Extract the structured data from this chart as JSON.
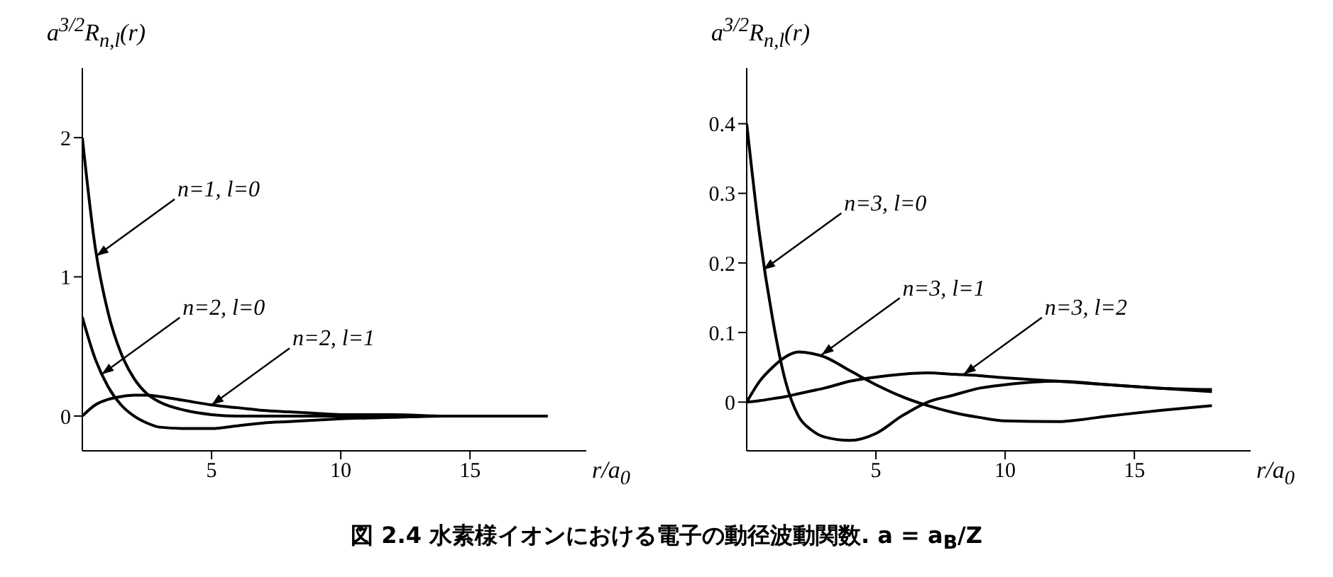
{
  "chart_data": [
    {
      "type": "line",
      "ylabel": "a$^{3/2}$R$_{n,l}$(r)",
      "xlabel": "r/a$_{0}$",
      "x": [
        0,
        0.5,
        1,
        1.5,
        2,
        2.5,
        3,
        4,
        5,
        6,
        7,
        8,
        9,
        10,
        12,
        14,
        16,
        18
      ],
      "xlim": [
        0,
        19.5
      ],
      "xticks": [
        5,
        10,
        15
      ],
      "ylim": [
        -0.25,
        2.5
      ],
      "yticks": [
        0,
        1,
        2
      ],
      "grid": false,
      "legend": false,
      "marker": "none",
      "line_style": "solid",
      "series": [
        {
          "color": "#000000",
          "values": [
            2,
            1.21,
            0.74,
            0.45,
            0.27,
            0.16,
            0.1,
            0.04,
            0.01,
            0,
            0,
            0,
            0,
            0,
            0,
            0,
            0,
            0
          ]
        },
        {
          "color": "#000000",
          "values": [
            0.71,
            0.41,
            0.21,
            0.08,
            0,
            -0.05,
            -0.08,
            -0.09,
            -0.09,
            -0.07,
            -0.05,
            -0.04,
            -0.03,
            -0.02,
            -0.01,
            0,
            0,
            0
          ]
        },
        {
          "color": "#000000",
          "values": [
            0,
            0.08,
            0.12,
            0.14,
            0.15,
            0.15,
            0.14,
            0.11,
            0.08,
            0.06,
            0.04,
            0.03,
            0.02,
            0.01,
            0.01,
            0,
            0,
            0
          ]
        }
      ],
      "annotations": [
        {
          "text": "n=1, l=0",
          "x": 0.55,
          "y": 1.15
        },
        {
          "text": "n=2, l=0",
          "x": 0.75,
          "y": 0.3
        },
        {
          "text": "n=2, l=1",
          "x": 5,
          "y": 0.08
        },
        "図 2.4 水素様イオンにおける電子の動径波動関数. a = a$_{B}$/Z"
      ]
    },
    {
      "type": "line",
      "ylabel": "a$^{3/2}$R$_{n,l}$(r)",
      "xlabel": "r/a$_{0}$",
      "x": [
        0,
        0.5,
        1,
        1.5,
        2,
        2.5,
        3,
        4,
        5,
        6,
        7,
        8,
        9,
        10,
        12,
        14,
        16,
        18
      ],
      "xlim": [
        0,
        19.5
      ],
      "xticks": [
        5,
        10,
        15
      ],
      "ylim": [
        -0.07,
        0.48
      ],
      "yticks": [
        0,
        0.1,
        0.2,
        0.3,
        0.4
      ],
      "grid": false,
      "legend": false,
      "marker": "none",
      "line_style": "solid",
      "series": [
        {
          "color": "#000000",
          "values": [
            0.4,
            0.24,
            0.12,
            0.03,
            -0.02,
            -0.04,
            -0.05,
            -0.055,
            -0.045,
            -0.02,
            0,
            0.01,
            0.02,
            0.025,
            0.03,
            0.025,
            0.02,
            0.015
          ]
        },
        {
          "color": "#000000",
          "values": [
            0,
            0.03,
            0.05,
            0.065,
            0.072,
            0.07,
            0.065,
            0.045,
            0.025,
            0.008,
            -0.005,
            -0.015,
            -0.022,
            -0.027,
            -0.028,
            -0.02,
            -0.012,
            -0.005
          ]
        },
        {
          "color": "#000000",
          "values": [
            0,
            0.002,
            0.005,
            0.008,
            0.012,
            0.016,
            0.02,
            0.03,
            0.036,
            0.04,
            0.042,
            0.04,
            0.038,
            0.035,
            0.03,
            0.025,
            0.02,
            0.018
          ]
        }
      ],
      "annotations": [
        {
          "text": "n=3, l=0",
          "x": 0.64,
          "y": 0.19
        },
        {
          "text": "n=3, l=1",
          "x": 2.9,
          "y": 0.068
        },
        {
          "text": "n=3, l=2",
          "x": 8.4,
          "y": 0.04
        }
      ]
    }
  ]
}
